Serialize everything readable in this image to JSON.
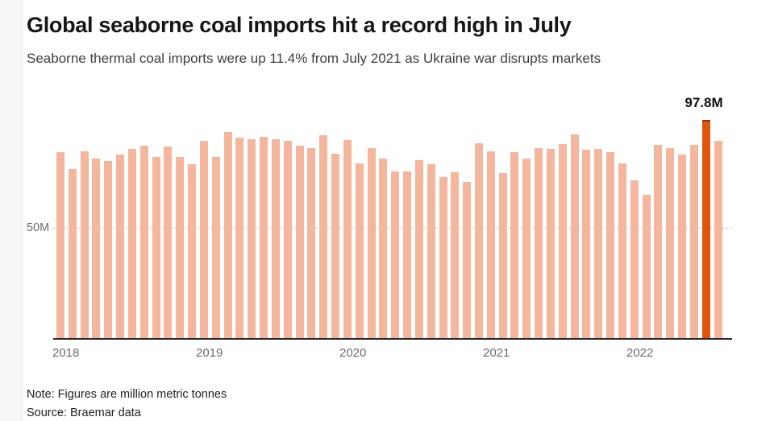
{
  "page": {
    "title": "Global seaborne coal imports hit a record high in July",
    "subtitle": "Seaborne thermal coal imports were up 11.4% from July 2021 as Ukraine war disrupts markets",
    "note": "Note: Figures are million metric tonnes",
    "source": "Source: Braemar data"
  },
  "chart_data": {
    "type": "bar",
    "title": "Global seaborne coal imports hit a record high in July",
    "subtitle": "Seaborne thermal coal imports were up 11.4% from July 2021 as Ukraine war disrupts markets",
    "unit": "million metric tonnes",
    "ylim": [
      0,
      100
    ],
    "grid": "single horizontal dashed gridline at 50M",
    "legend": "none",
    "x": [
      "Jan 2018",
      "Feb 2018",
      "Mar 2018",
      "Apr 2018",
      "May 2018",
      "Jun 2018",
      "Jul 2018",
      "Aug 2018",
      "Sep 2018",
      "Oct 2018",
      "Nov 2018",
      "Dec 2018",
      "Jan 2019",
      "Feb 2019",
      "Mar 2019",
      "Apr 2019",
      "May 2019",
      "Jun 2019",
      "Jul 2019",
      "Aug 2019",
      "Sep 2019",
      "Oct 2019",
      "Nov 2019",
      "Dec 2019",
      "Jan 2020",
      "Feb 2020",
      "Mar 2020",
      "Apr 2020",
      "May 2020",
      "Jun 2020",
      "Jul 2020",
      "Aug 2020",
      "Sep 2020",
      "Oct 2020",
      "Nov 2020",
      "Dec 2020",
      "Jan 2021",
      "Feb 2021",
      "Mar 2021",
      "Apr 2021",
      "May 2021",
      "Jun 2021",
      "Jul 2021",
      "Aug 2021",
      "Sep 2021",
      "Oct 2021",
      "Nov 2021",
      "Dec 2021",
      "Jan 2022",
      "Feb 2022",
      "Mar 2022",
      "Apr 2022",
      "May 2022",
      "Jun 2022",
      "Jul 2022",
      "Aug 2022"
    ],
    "values": [
      84,
      76.5,
      84.5,
      81,
      80,
      83,
      85.5,
      87,
      82,
      86.5,
      82,
      78.5,
      89,
      82,
      93,
      90.5,
      90,
      91,
      90,
      89,
      87,
      86,
      91.5,
      83.5,
      89.5,
      79,
      86,
      81,
      75.5,
      75.5,
      80.5,
      78.5,
      73,
      75,
      70.5,
      88,
      84.5,
      74.5,
      84,
      81,
      86,
      85.5,
      87.8,
      92,
      85,
      85.5,
      84,
      79,
      71.5,
      65,
      87.5,
      86,
      83,
      87.5,
      97.8,
      89
    ],
    "highlight": {
      "index": 54,
      "label": "Jul 2022",
      "value": 97.8,
      "annotation": "97.8M"
    },
    "y_ticks": [
      {
        "value": 50,
        "label": "50M"
      }
    ],
    "x_tick_labels": [
      "2018",
      "2019",
      "2020",
      "2021",
      "2022"
    ],
    "colors": {
      "bar": "#f4b69c",
      "highlight": "#e0540e",
      "highlight_cap": "#8a3a08",
      "gridline": "#c5c5c5",
      "axis": "#28292b",
      "tick_text": "#6b6b6b",
      "title_text": "#161616",
      "subtitle_text": "#3e3e3e",
      "annotation_text": "#111111",
      "note_text": "#1f1f1f"
    }
  }
}
